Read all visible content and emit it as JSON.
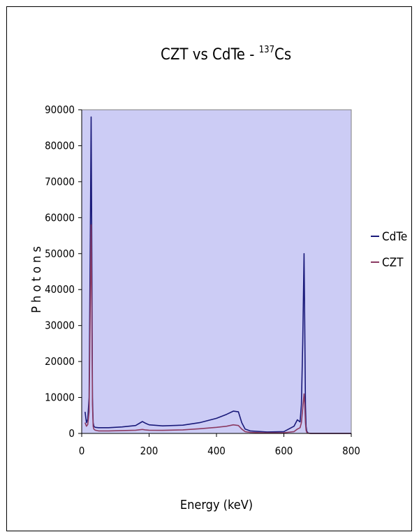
{
  "chart_data": {
    "type": "line",
    "title": {
      "main": "CZT vs CdTe - ",
      "isotope_mass": "137",
      "isotope_symbol": "Cs"
    },
    "xlabel": "Energy (keV)",
    "ylabel": "P h o t o n s",
    "xlim": [
      0,
      800
    ],
    "ylim": [
      0,
      90000
    ],
    "x_ticks": [
      "0",
      "200",
      "400",
      "600",
      "800"
    ],
    "y_ticks": [
      "0",
      "10000",
      "20000",
      "30000",
      "40000",
      "50000",
      "60000",
      "70000",
      "80000",
      "90000"
    ],
    "grid": false,
    "legend_position": "right",
    "plot_background": "#ccccf5",
    "series": [
      {
        "name": "CdTe",
        "color": "#1a1a7a",
        "x": [
          10,
          14,
          18,
          22,
          26,
          28,
          30,
          32,
          34,
          36,
          40,
          50,
          80,
          120,
          160,
          180,
          188,
          200,
          240,
          300,
          350,
          400,
          430,
          450,
          465,
          475,
          485,
          500,
          550,
          600,
          630,
          640,
          648,
          652,
          656,
          660,
          662,
          664,
          666,
          668,
          672,
          680,
          700,
          800
        ],
        "y": [
          6000,
          3000,
          4000,
          10000,
          60000,
          88000,
          50000,
          10000,
          3000,
          2000,
          1700,
          1600,
          1600,
          1800,
          2200,
          3300,
          2900,
          2400,
          2100,
          2300,
          3000,
          4200,
          5300,
          6200,
          6000,
          3000,
          1200,
          700,
          400,
          500,
          2000,
          3800,
          3200,
          8000,
          25000,
          50000,
          30000,
          8000,
          2000,
          600,
          100,
          0,
          0,
          0
        ]
      },
      {
        "name": "CZT",
        "color": "#8b3a62",
        "x": [
          10,
          14,
          18,
          22,
          26,
          28,
          30,
          32,
          34,
          36,
          40,
          50,
          80,
          120,
          160,
          180,
          188,
          200,
          240,
          300,
          350,
          400,
          430,
          450,
          465,
          475,
          485,
          500,
          550,
          600,
          630,
          640,
          648,
          652,
          656,
          660,
          662,
          664,
          666,
          668,
          672,
          680,
          700,
          800
        ],
        "y": [
          3000,
          2000,
          2500,
          6000,
          40000,
          58000,
          35000,
          8000,
          2000,
          1200,
          900,
          700,
          700,
          800,
          900,
          1100,
          1000,
          900,
          850,
          1000,
          1300,
          1700,
          2000,
          2400,
          2200,
          1200,
          500,
          300,
          150,
          200,
          500,
          1200,
          1600,
          3000,
          7000,
          11000,
          8000,
          3000,
          900,
          300,
          50,
          0,
          0,
          0
        ]
      }
    ]
  }
}
